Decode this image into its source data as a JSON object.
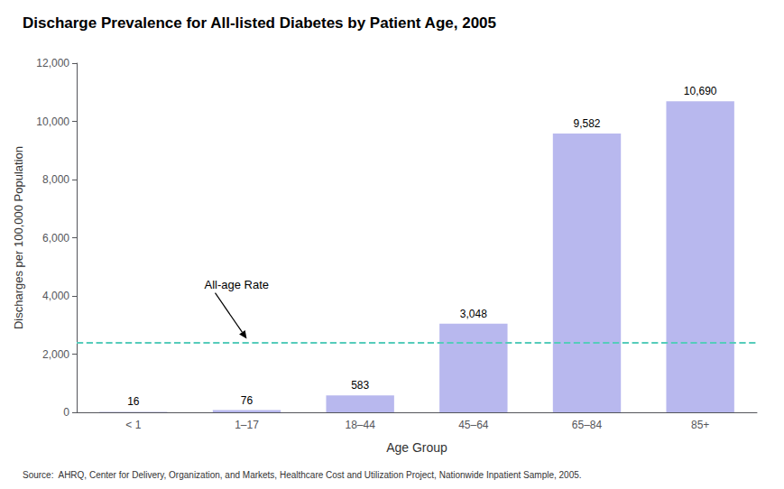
{
  "chart_data": {
    "type": "bar",
    "title": "Discharge Prevalence for All-listed Diabetes by Patient Age, 2005",
    "categories": [
      "< 1",
      "1–17",
      "18–44",
      "45–64",
      "65–84",
      "85+"
    ],
    "values": [
      16,
      76,
      583,
      3048,
      9582,
      10690
    ],
    "value_labels": [
      "16",
      "76",
      "583",
      "3,048",
      "9,582",
      "10,690"
    ],
    "data_labels": true,
    "color": "#b8b8ee",
    "xlabel": "Age Group",
    "ylabel": "Discharges per 100,000 Population",
    "ylim": [
      0,
      12000
    ],
    "yticks": [
      0,
      {
        "value": 2000,
        "label": "2,000"
      },
      {
        "value": 4000,
        "label": "4,000"
      },
      {
        "value": 6000,
        "label": "6,000"
      },
      {
        "value": 8000,
        "label": "8,000"
      },
      {
        "value": 10000,
        "label": "10,000"
      },
      {
        "value": 12000,
        "label": "12,000"
      }
    ],
    "grid": false,
    "annotations": [
      {
        "text": "All-age Rate",
        "y": 2400,
        "color": "#55ccbb",
        "line_style": "dashed"
      }
    ],
    "source": "Source:  AHRQ, Center for Delivery, Organization, and Markets, Healthcare Cost and Utilization Project, Nationwide Inpatient Sample, 2005."
  }
}
